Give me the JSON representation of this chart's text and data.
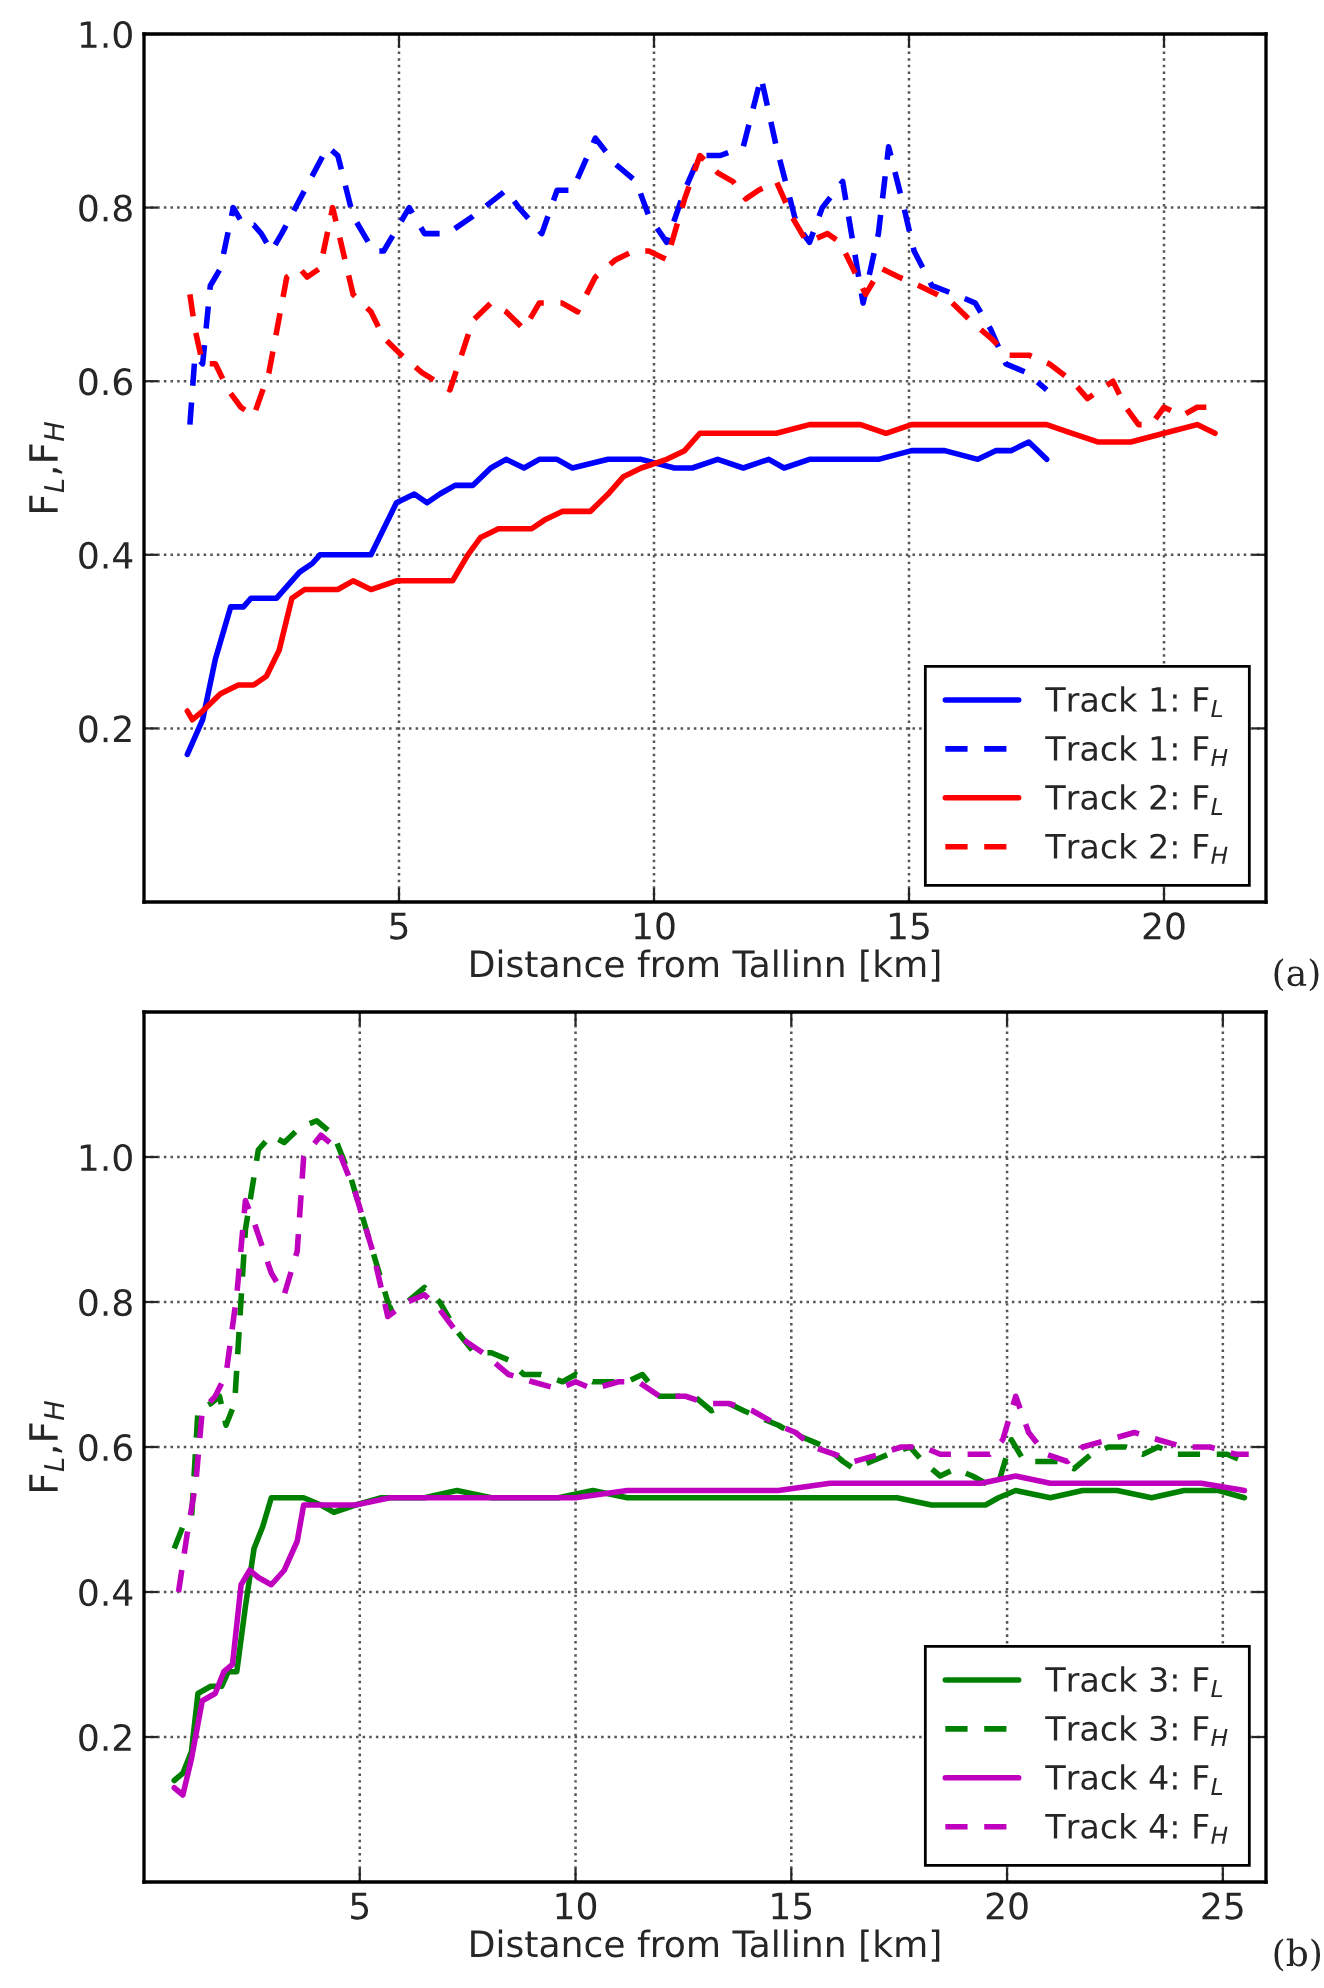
{
  "chart_data": [
    {
      "type": "line",
      "xlabel": "Distance from Tallinn [km]",
      "ylabel": "F$_{L}$,F$_{H}$",
      "xlim": [
        0,
        22
      ],
      "ylim": [
        0,
        1.0
      ],
      "xticks": [
        5,
        10,
        15,
        20
      ],
      "yticks": [
        0.2,
        0.4,
        0.6,
        0.8,
        {
          "value": 1.0,
          "label": "1.0"
        }
      ],
      "grid": true,
      "legend": "bottom right",
      "annotations": [
        "(a)"
      ],
      "series": [
        {
          "name": "Track 1: F$_{L}$",
          "color": "#0000ff",
          "line_style": "solid",
          "x": [
            0.85,
            1.15,
            1.4,
            1.7,
            1.95,
            2.1,
            2.4,
            2.6,
            3.05,
            3.3,
            3.45,
            3.8,
            4.1,
            4.45,
            4.7,
            4.95,
            5.3,
            5.55,
            5.8,
            6.1,
            6.45,
            6.8,
            7.1,
            7.45,
            7.75,
            8.1,
            8.4,
            9.1,
            9.75,
            10.4,
            10.75,
            11.25,
            11.75,
            12.25,
            12.55,
            13.05,
            13.7,
            14.4,
            15.05,
            15.7,
            16.35,
            16.7,
            17.0,
            17.35,
            17.7
          ],
          "values": [
            0.17,
            0.21,
            0.28,
            0.34,
            0.34,
            0.35,
            0.35,
            0.35,
            0.38,
            0.39,
            0.4,
            0.4,
            0.4,
            0.4,
            0.43,
            0.46,
            0.47,
            0.46,
            0.47,
            0.48,
            0.48,
            0.5,
            0.51,
            0.5,
            0.51,
            0.51,
            0.5,
            0.51,
            0.51,
            0.5,
            0.5,
            0.51,
            0.5,
            0.51,
            0.5,
            0.51,
            0.51,
            0.51,
            0.52,
            0.52,
            0.51,
            0.52,
            0.52,
            0.53,
            0.51
          ]
        },
        {
          "name": "Track 1: F$_{H}$",
          "color": "#0000ff",
          "line_style": "dashed",
          "x": [
            0.9,
            1.0,
            1.15,
            1.3,
            1.5,
            1.75,
            1.95,
            2.15,
            2.3,
            2.5,
            2.7,
            3.6,
            3.8,
            4.1,
            4.5,
            4.7,
            5.0,
            5.2,
            5.5,
            5.95,
            6.45,
            7.1,
            7.35,
            7.8,
            8.1,
            8.4,
            8.85,
            9.25,
            9.65,
            9.9,
            10.25,
            10.6,
            10.9,
            11.3,
            11.75,
            12.1,
            12.4,
            12.8,
            13.05,
            13.3,
            13.7,
            14.1,
            14.4,
            14.6,
            14.9,
            15.1,
            15.45,
            15.9,
            16.3,
            16.6,
            16.9,
            17.3,
            17.7
          ],
          "values": [
            0.55,
            0.63,
            0.62,
            0.71,
            0.73,
            0.8,
            0.78,
            0.78,
            0.77,
            0.75,
            0.77,
            0.87,
            0.86,
            0.79,
            0.75,
            0.75,
            0.78,
            0.8,
            0.77,
            0.77,
            0.79,
            0.82,
            0.8,
            0.77,
            0.82,
            0.82,
            0.88,
            0.85,
            0.83,
            0.79,
            0.76,
            0.82,
            0.86,
            0.86,
            0.87,
            0.95,
            0.87,
            0.78,
            0.76,
            0.8,
            0.83,
            0.69,
            0.77,
            0.87,
            0.8,
            0.75,
            0.71,
            0.7,
            0.69,
            0.66,
            0.62,
            0.61,
            0.59
          ]
        },
        {
          "name": "Track 2: F$_{L}$",
          "color": "#ff0000",
          "line_style": "solid",
          "x": [
            0.85,
            0.95,
            1.15,
            1.5,
            1.85,
            2.15,
            2.4,
            2.65,
            2.9,
            3.15,
            3.45,
            3.8,
            4.1,
            4.45,
            4.95,
            5.45,
            5.8,
            6.05,
            6.35,
            6.6,
            6.95,
            7.3,
            7.6,
            7.85,
            8.2,
            8.75,
            9.1,
            9.4,
            9.75,
            10.25,
            10.6,
            10.9,
            11.4,
            12.05,
            12.4,
            13.05,
            13.7,
            14.05,
            14.55,
            15.05,
            15.7,
            16.35,
            17.0,
            17.7,
            18.2,
            18.7,
            19.35,
            20.0,
            20.65,
            21.0
          ],
          "values": [
            0.22,
            0.21,
            0.22,
            0.24,
            0.25,
            0.25,
            0.26,
            0.29,
            0.35,
            0.36,
            0.36,
            0.36,
            0.37,
            0.36,
            0.37,
            0.37,
            0.37,
            0.37,
            0.4,
            0.42,
            0.43,
            0.43,
            0.43,
            0.44,
            0.45,
            0.45,
            0.47,
            0.49,
            0.5,
            0.51,
            0.52,
            0.54,
            0.54,
            0.54,
            0.54,
            0.55,
            0.55,
            0.55,
            0.54,
            0.55,
            0.55,
            0.55,
            0.55,
            0.55,
            0.54,
            0.53,
            0.53,
            0.54,
            0.55,
            0.54
          ]
        },
        {
          "name": "Track 2: F$_{H}$",
          "color": "#ff0000",
          "line_style": "dashed",
          "x": [
            0.9,
            1.0,
            1.15,
            1.4,
            1.65,
            1.9,
            2.15,
            2.45,
            2.8,
            3.05,
            3.2,
            3.45,
            3.7,
            4.1,
            4.45,
            4.7,
            5.05,
            5.45,
            6.0,
            6.45,
            6.8,
            7.1,
            7.45,
            7.75,
            8.2,
            8.5,
            8.85,
            9.25,
            9.6,
            9.9,
            10.25,
            10.6,
            10.9,
            11.25,
            11.55,
            11.8,
            12.05,
            12.4,
            12.7,
            13.0,
            13.4,
            13.65,
            13.9,
            14.15,
            14.45,
            14.8,
            15.2,
            15.55,
            15.85,
            16.2,
            16.6,
            16.95,
            17.35,
            17.75,
            18.2,
            18.5,
            18.75,
            19.0,
            19.25,
            19.5,
            19.75,
            20.0,
            20.35,
            20.65,
            20.95
          ],
          "values": [
            0.7,
            0.66,
            0.62,
            0.62,
            0.59,
            0.57,
            0.56,
            0.61,
            0.72,
            0.73,
            0.72,
            0.73,
            0.8,
            0.7,
            0.68,
            0.65,
            0.63,
            0.61,
            0.59,
            0.67,
            0.69,
            0.68,
            0.66,
            0.69,
            0.69,
            0.68,
            0.72,
            0.74,
            0.75,
            0.75,
            0.74,
            0.81,
            0.86,
            0.84,
            0.83,
            0.81,
            0.82,
            0.83,
            0.79,
            0.76,
            0.77,
            0.76,
            0.73,
            0.7,
            0.73,
            0.72,
            0.71,
            0.7,
            0.69,
            0.67,
            0.65,
            0.63,
            0.63,
            0.62,
            0.6,
            0.58,
            0.59,
            0.6,
            0.57,
            0.55,
            0.55,
            0.57,
            0.56,
            0.57,
            0.57
          ]
        }
      ]
    },
    {
      "type": "line",
      "xlabel": "Distance from Tallinn [km]",
      "ylabel": "F$_{L}$,F$_{H}$",
      "xlim": [
        0,
        26
      ],
      "ylim": [
        0,
        1.2
      ],
      "xticks": [
        5,
        10,
        15,
        20,
        25
      ],
      "yticks": [
        0.2,
        0.4,
        0.6,
        0.8,
        {
          "value": 1.0,
          "label": "1.0"
        }
      ],
      "grid": true,
      "legend": "bottom right",
      "annotations": [
        "(b)"
      ],
      "series": [
        {
          "name": "Track 3: F$_{L}$",
          "color": "#008000",
          "line_style": "solid",
          "x": [
            0.7,
            0.9,
            1.1,
            1.25,
            1.55,
            1.8,
            1.95,
            2.15,
            2.35,
            2.55,
            2.75,
            2.95,
            3.35,
            3.7,
            4.1,
            4.4,
            4.9,
            5.5,
            6.5,
            7.25,
            8.05,
            8.8,
            9.6,
            10.4,
            11.2,
            11.95,
            12.75,
            13.55,
            14.3,
            15.1,
            15.9,
            16.65,
            17.45,
            18.25,
            19.0,
            19.5,
            19.8,
            20.2,
            21.0,
            21.75,
            22.55,
            23.35,
            24.1,
            24.9,
            25.5
          ],
          "values": [
            0.14,
            0.15,
            0.18,
            0.26,
            0.27,
            0.27,
            0.29,
            0.29,
            0.38,
            0.46,
            0.49,
            0.53,
            0.53,
            0.53,
            0.52,
            0.51,
            0.52,
            0.53,
            0.53,
            0.54,
            0.53,
            0.53,
            0.53,
            0.54,
            0.53,
            0.53,
            0.53,
            0.53,
            0.53,
            0.53,
            0.53,
            0.53,
            0.53,
            0.52,
            0.52,
            0.52,
            0.53,
            0.54,
            0.53,
            0.54,
            0.54,
            0.53,
            0.54,
            0.54,
            0.53
          ]
        },
        {
          "name": "Track 3: F$_{H}$",
          "color": "#008000",
          "line_style": "dashed",
          "x": [
            0.7,
            0.9,
            1.1,
            1.25,
            1.55,
            1.75,
            1.9,
            2.1,
            2.35,
            2.65,
            2.95,
            3.25,
            3.6,
            4.0,
            4.4,
            4.8,
            5.2,
            5.7,
            6.1,
            6.5,
            6.85,
            7.25,
            7.65,
            8.05,
            8.45,
            8.8,
            9.2,
            9.7,
            10.0,
            10.4,
            10.8,
            11.2,
            11.55,
            11.95,
            12.35,
            12.75,
            13.15,
            13.55,
            13.9,
            14.3,
            14.7,
            15.0,
            15.4,
            15.8,
            16.2,
            16.45,
            16.85,
            17.25,
            17.75,
            18.05,
            18.45,
            18.8,
            19.2,
            19.5,
            19.8,
            20.1,
            20.4,
            20.8,
            21.2,
            21.55,
            21.95,
            22.35,
            22.75,
            23.15,
            23.5,
            23.9,
            24.3,
            24.7,
            25.1,
            25.5
          ],
          "values": [
            0.46,
            0.49,
            0.5,
            0.65,
            0.66,
            0.67,
            0.63,
            0.66,
            0.9,
            1.01,
            1.03,
            1.02,
            1.04,
            1.05,
            1.03,
            0.97,
            0.89,
            0.79,
            0.8,
            0.82,
            0.8,
            0.76,
            0.73,
            0.73,
            0.72,
            0.7,
            0.7,
            0.69,
            0.7,
            0.69,
            0.69,
            0.69,
            0.7,
            0.67,
            0.67,
            0.67,
            0.65,
            0.66,
            0.65,
            0.64,
            0.63,
            0.62,
            0.61,
            0.6,
            0.58,
            0.57,
            0.58,
            0.59,
            0.6,
            0.58,
            0.56,
            0.57,
            0.56,
            0.55,
            0.55,
            0.61,
            0.58,
            0.58,
            0.58,
            0.57,
            0.59,
            0.6,
            0.6,
            0.59,
            0.6,
            0.59,
            0.59,
            0.59,
            0.59,
            0.58
          ]
        },
        {
          "name": "Track 4: F$_{L}$",
          "color": "#bf00bf",
          "line_style": "solid",
          "x": [
            0.7,
            0.9,
            1.1,
            1.35,
            1.65,
            1.85,
            2.05,
            2.25,
            2.45,
            2.65,
            2.95,
            3.25,
            3.55,
            3.7,
            4.1,
            4.9,
            5.7,
            6.5,
            7.65,
            8.8,
            10.0,
            11.2,
            12.35,
            13.55,
            14.7,
            15.9,
            17.05,
            18.25,
            19.4,
            20.2,
            21.0,
            22.15,
            23.35,
            24.5,
            25.5
          ],
          "values": [
            0.13,
            0.12,
            0.17,
            0.25,
            0.26,
            0.29,
            0.3,
            0.41,
            0.43,
            0.42,
            0.41,
            0.43,
            0.47,
            0.52,
            0.52,
            0.52,
            0.53,
            0.53,
            0.53,
            0.53,
            0.53,
            0.54,
            0.54,
            0.54,
            0.54,
            0.55,
            0.55,
            0.55,
            0.55,
            0.56,
            0.55,
            0.55,
            0.55,
            0.55,
            0.54
          ]
        },
        {
          "name": "Track 4: F$_{H}$",
          "color": "#bf00bf",
          "line_style": "dashed",
          "x": [
            0.8,
            1.0,
            1.2,
            1.35,
            1.65,
            1.9,
            2.15,
            2.35,
            2.55,
            2.95,
            3.25,
            3.55,
            3.7,
            4.1,
            4.5,
            4.9,
            5.3,
            5.65,
            6.1,
            6.5,
            6.85,
            7.35,
            7.85,
            8.45,
            9.0,
            9.6,
            10.0,
            10.4,
            11.0,
            11.45,
            11.95,
            12.55,
            13.05,
            13.55,
            14.1,
            14.7,
            15.1,
            15.5,
            16.0,
            16.45,
            17.05,
            17.55,
            18.05,
            18.45,
            19.0,
            19.6,
            19.9,
            20.2,
            20.5,
            20.9,
            21.4,
            21.75,
            22.35,
            22.95,
            23.5,
            24.1,
            24.7,
            25.3,
            25.6
          ],
          "values": [
            0.4,
            0.48,
            0.55,
            0.65,
            0.67,
            0.7,
            0.81,
            0.94,
            0.91,
            0.84,
            0.81,
            0.87,
            1.0,
            1.03,
            1.01,
            0.95,
            0.87,
            0.78,
            0.8,
            0.81,
            0.79,
            0.75,
            0.73,
            0.7,
            0.69,
            0.68,
            0.69,
            0.68,
            0.69,
            0.69,
            0.67,
            0.67,
            0.66,
            0.66,
            0.65,
            0.63,
            0.62,
            0.6,
            0.59,
            0.58,
            0.59,
            0.6,
            0.6,
            0.59,
            0.59,
            0.59,
            0.61,
            0.67,
            0.62,
            0.59,
            0.58,
            0.6,
            0.61,
            0.62,
            0.61,
            0.6,
            0.6,
            0.59,
            0.59
          ]
        }
      ]
    }
  ]
}
